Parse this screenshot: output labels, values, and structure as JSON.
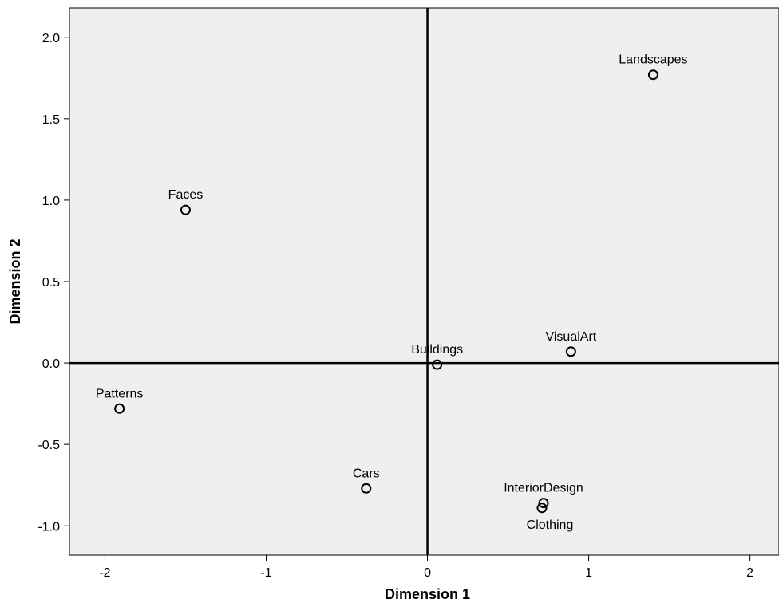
{
  "chart_data": {
    "type": "scatter",
    "title": "",
    "xlabel": "Dimension 1",
    "ylabel": "Dimension 2",
    "xlim": [
      -2.22,
      2.18
    ],
    "ylim": [
      -1.18,
      2.18
    ],
    "grid": false,
    "reference_lines": {
      "x": 0,
      "y": 0
    },
    "x_ticks": [
      -2,
      -1,
      0,
      1,
      2
    ],
    "x_tick_labels": [
      "-2",
      "-1",
      "0",
      "1",
      "2"
    ],
    "y_ticks": [
      -1.0,
      -0.5,
      0.0,
      0.5,
      1.0,
      1.5,
      2.0
    ],
    "y_tick_labels": [
      "-1.0",
      "-0.5",
      "0.0",
      "0.5",
      "1.0",
      "1.5",
      "2.0"
    ],
    "points": [
      {
        "label": "Landscapes",
        "x": 1.4,
        "y": 1.77
      },
      {
        "label": "Faces",
        "x": -1.5,
        "y": 0.94
      },
      {
        "label": "VisualArt",
        "x": 0.89,
        "y": 0.07
      },
      {
        "label": "Buildings",
        "x": 0.06,
        "y": -0.01
      },
      {
        "label": "Patterns",
        "x": -1.91,
        "y": -0.28
      },
      {
        "label": "Cars",
        "x": -0.38,
        "y": -0.77
      },
      {
        "label": "InteriorDesign",
        "x": 0.72,
        "y": -0.86
      },
      {
        "label": "Clothing",
        "x": 0.71,
        "y": -0.89
      }
    ],
    "colors": {
      "plot_background": "#efefef",
      "marker": "#000000",
      "axis": "#000000"
    }
  }
}
